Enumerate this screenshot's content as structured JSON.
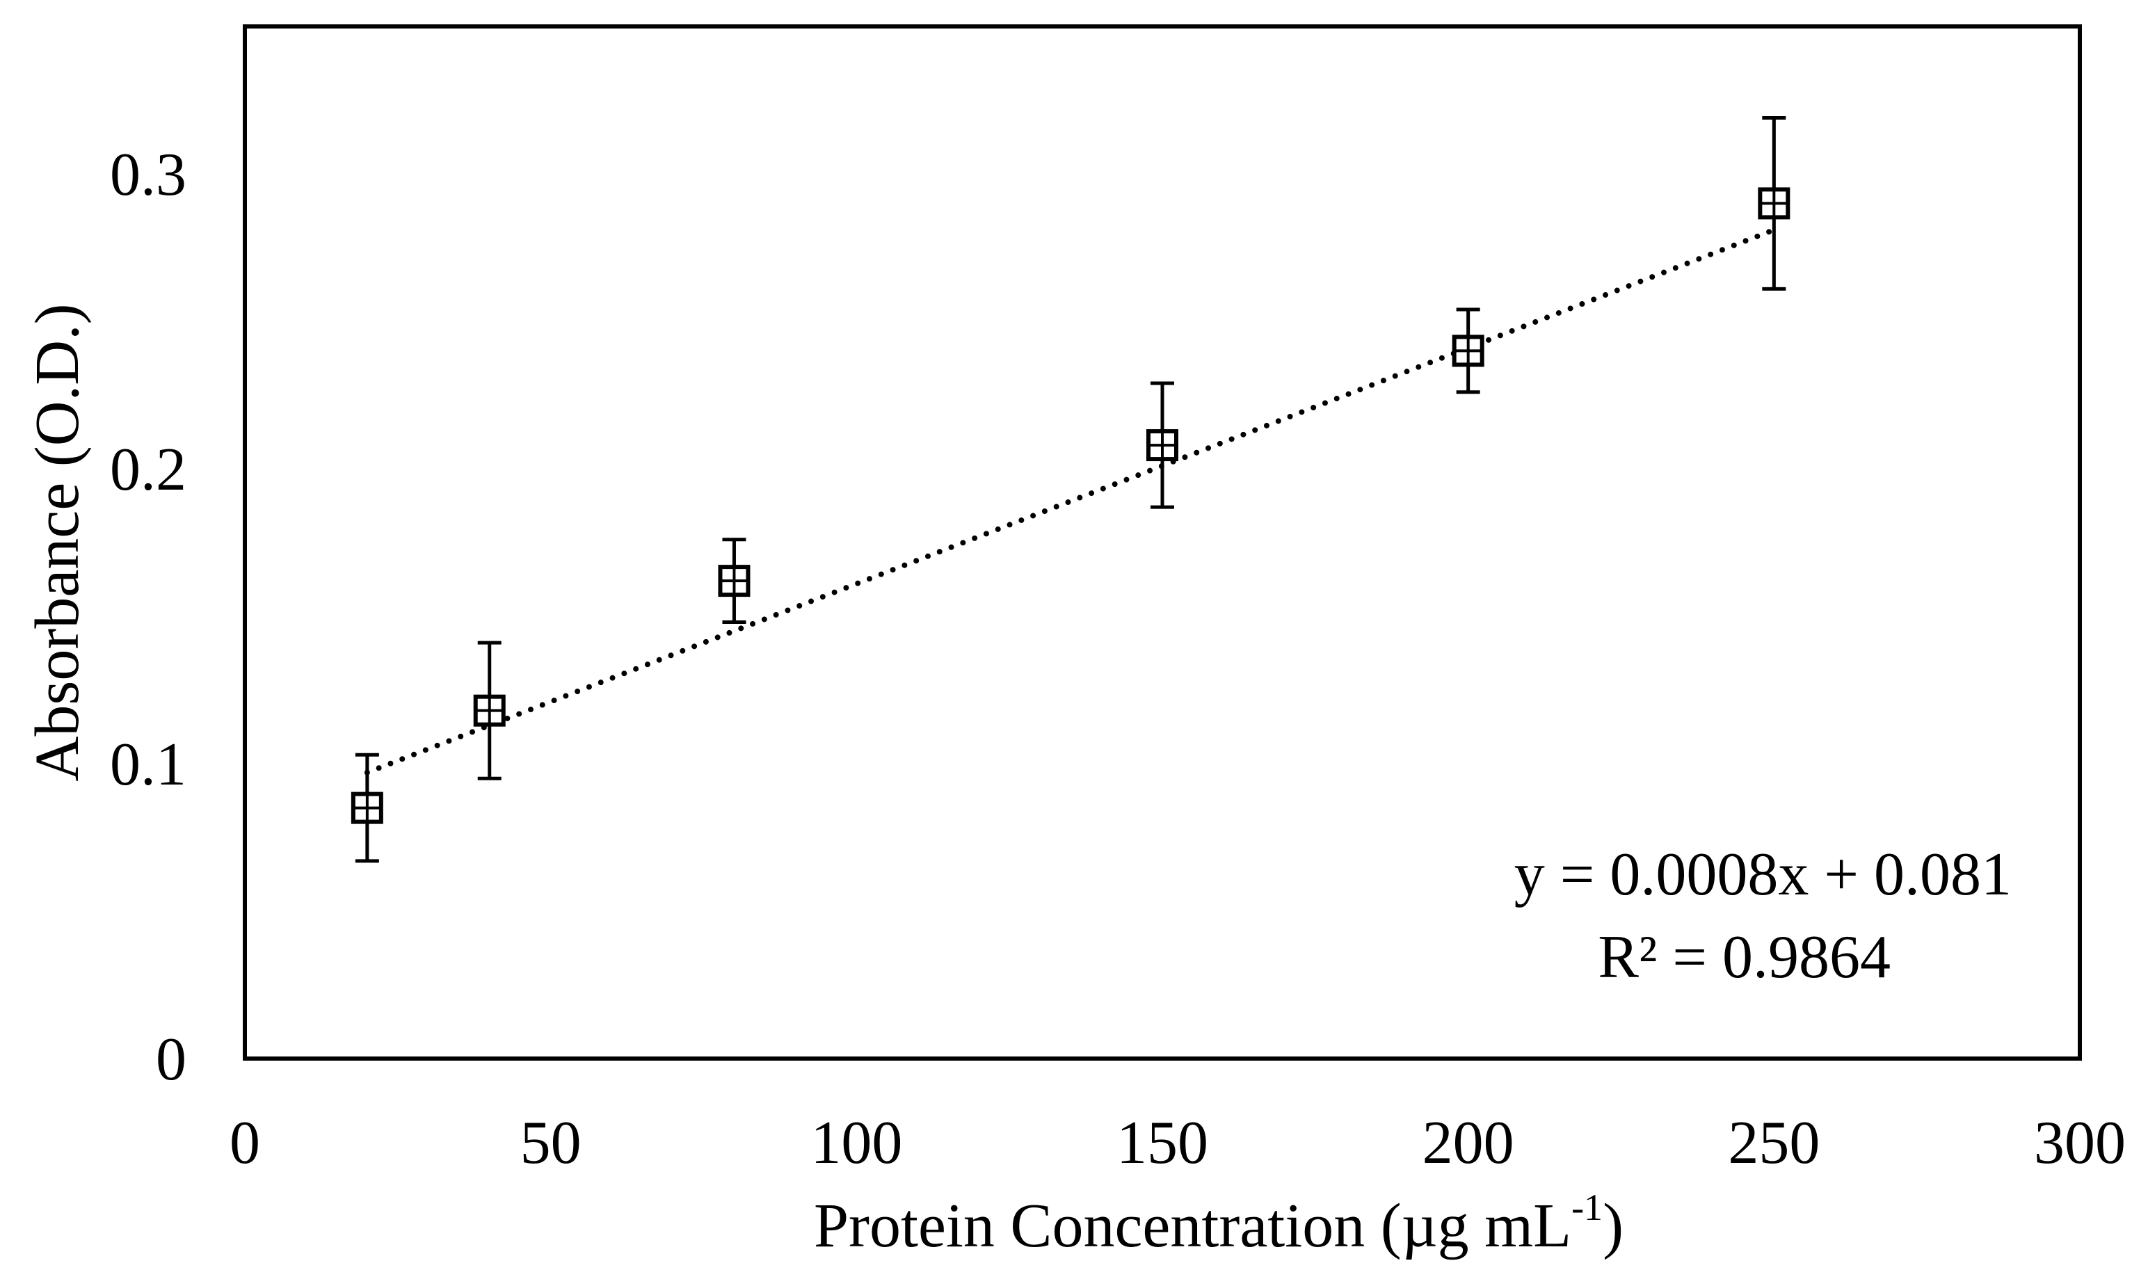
{
  "chart_data": {
    "type": "scatter",
    "title": "",
    "xlabel": "Protein Concentration (µg mL",
    "xlabel_superscript": "-1",
    "xlabel_suffix": ")",
    "ylabel": "Absorbance (O.D.)",
    "xlim": [
      0,
      300
    ],
    "ylim": [
      0,
      0.35
    ],
    "x_ticks": [
      0,
      50,
      100,
      150,
      200,
      250,
      300
    ],
    "x_tick_labels": [
      "0",
      "50",
      "100",
      "150",
      "200",
      "250",
      "300"
    ],
    "y_ticks": [
      0,
      0.1,
      0.2,
      0.3
    ],
    "y_tick_labels": [
      "0",
      "0.1",
      "0.2",
      "0.3"
    ],
    "grid": false,
    "legend": "none",
    "marker": "square-with-cross",
    "series": [
      {
        "x": [
          20,
          40,
          80,
          150,
          200,
          250
        ],
        "y": [
          0.085,
          0.118,
          0.162,
          0.208,
          0.24,
          0.29
        ],
        "yerr": [
          0.018,
          0.023,
          0.014,
          0.021,
          0.014,
          0.029
        ]
      }
    ],
    "trendline": {
      "style": "dotted",
      "slope": 0.0008,
      "intercept": 0.081,
      "x_range": [
        20,
        250
      ],
      "equation_label": "y = 0.0008x + 0.081",
      "r2_label": "R² = 0.9864"
    }
  }
}
